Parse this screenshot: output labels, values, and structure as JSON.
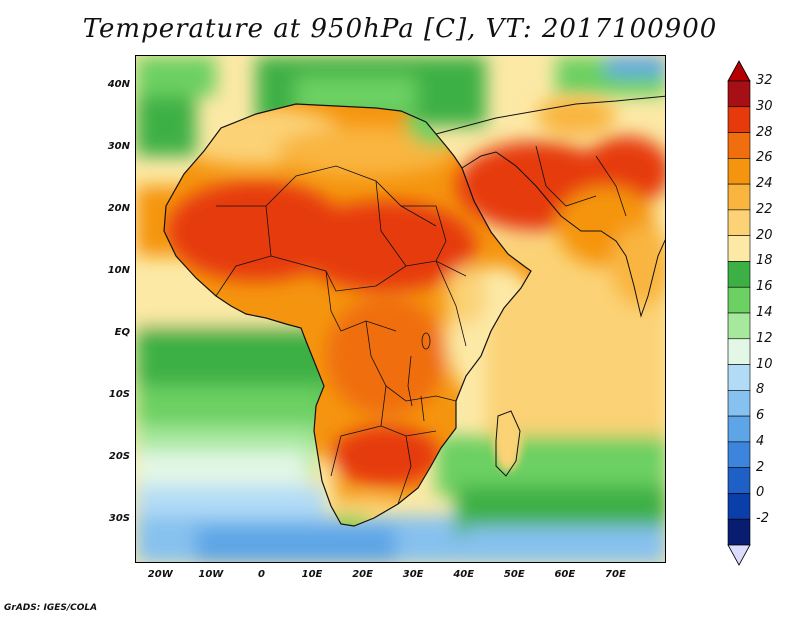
{
  "title": "Temperature at 950hPa [C], VT: 2017100900",
  "credit": "GrADS: IGES/COLA",
  "map": {
    "region": "Africa and Middle East",
    "lon_range": [
      -25,
      80
    ],
    "lat_range": [
      -37,
      45
    ],
    "lat_ticks": [
      {
        "value": 40,
        "label": "40N"
      },
      {
        "value": 30,
        "label": "30N"
      },
      {
        "value": 20,
        "label": "20N"
      },
      {
        "value": 10,
        "label": "10N"
      },
      {
        "value": 0,
        "label": "EQ"
      },
      {
        "value": -10,
        "label": "10S"
      },
      {
        "value": -20,
        "label": "20S"
      },
      {
        "value": -30,
        "label": "30S"
      }
    ],
    "lon_ticks": [
      {
        "value": -20,
        "label": "20W"
      },
      {
        "value": -10,
        "label": "10W"
      },
      {
        "value": 0,
        "label": "0"
      },
      {
        "value": 10,
        "label": "10E"
      },
      {
        "value": 20,
        "label": "20E"
      },
      {
        "value": 30,
        "label": "30E"
      },
      {
        "value": 40,
        "label": "40E"
      },
      {
        "value": 50,
        "label": "50E"
      },
      {
        "value": 60,
        "label": "60E"
      },
      {
        "value": 70,
        "label": "70E"
      }
    ]
  },
  "colorbar": {
    "labels": [
      "32",
      "30",
      "28",
      "26",
      "24",
      "22",
      "20",
      "18",
      "16",
      "14",
      "12",
      "10",
      "8",
      "6",
      "4",
      "2",
      "0",
      "-2"
    ],
    "colors": [
      "#a50f15",
      "#e63a0d",
      "#f06e0e",
      "#f5950f",
      "#f9b540",
      "#fbd276",
      "#fce9a6",
      "#3cb044",
      "#6cd062",
      "#a6e89c",
      "#e2f7e6",
      "#b2dcf6",
      "#86c1ef",
      "#5da5e6",
      "#3c84dc",
      "#1f60c6",
      "#0a3ea8",
      "#081d6f"
    ],
    "top_arrow_color": "#b40000",
    "bottom_arrow_color": "#dcdcff"
  }
}
